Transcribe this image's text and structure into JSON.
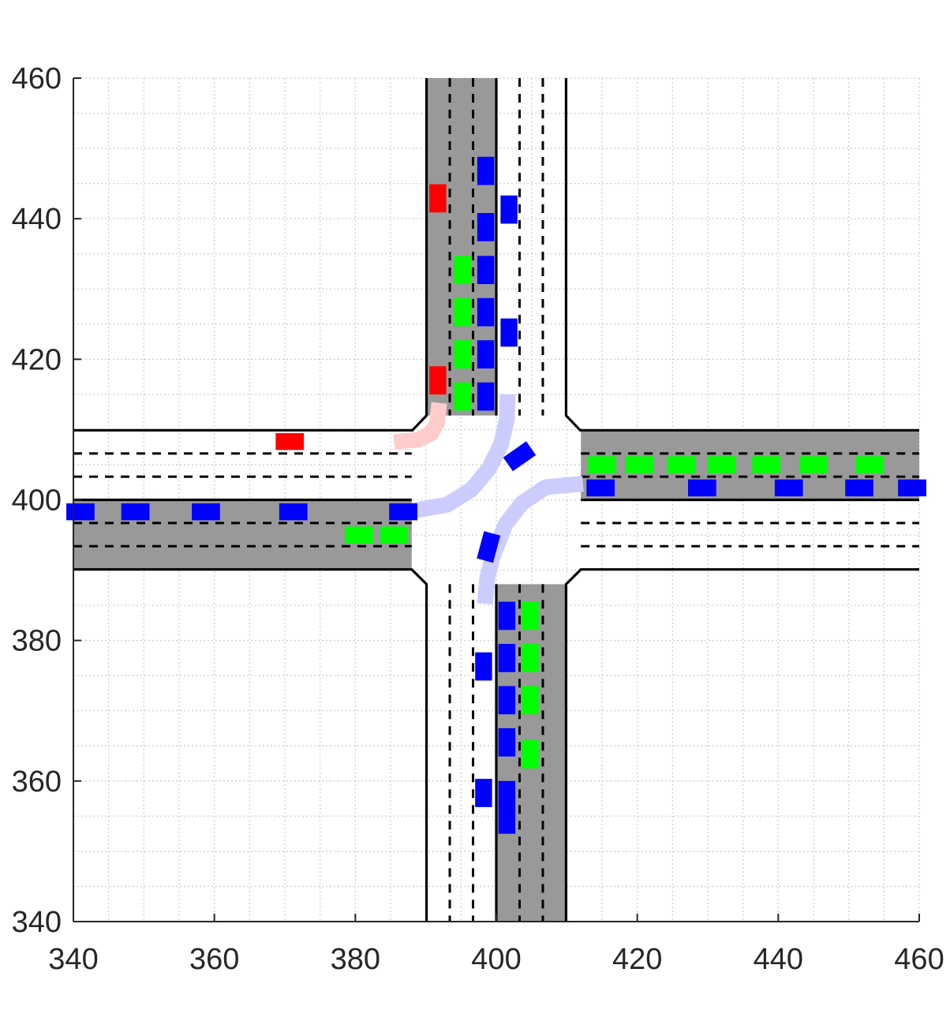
{
  "chart_data": {
    "type": "scatter",
    "title": "",
    "xlabel": "",
    "ylabel": "",
    "xlim": [
      340,
      460
    ],
    "ylim": [
      340,
      460
    ],
    "grid": "on",
    "minor_grid": "on",
    "x_tick_labels": [
      "340",
      "360",
      "380",
      "400",
      "420",
      "440",
      "460"
    ],
    "y_tick_labels": [
      "340",
      "360",
      "380",
      "400",
      "420",
      "440",
      "460"
    ],
    "colors": {
      "road_shade": "#999999",
      "blue_vehicle": "#0000ff",
      "green_vehicle": "#00ff00",
      "red_vehicle": "#ff0000",
      "blue_trajectory": "#ccccff",
      "red_trajectory": "#ffcccc",
      "road_edge": "#000000",
      "grid": "#d0d0d0"
    },
    "road": {
      "center": [
        400,
        400
      ],
      "lane_width": 3.3,
      "lanes_per_direction": 3,
      "intersection_half_size": 12,
      "corner_chamfer": 2
    },
    "trajectories": [
      {
        "color": "blue",
        "points": [
          [
            388.3,
            398.5
          ],
          [
            393,
            399.3
          ],
          [
            396.5,
            401.5
          ],
          [
            399,
            404.5
          ],
          [
            400.7,
            408
          ],
          [
            401.5,
            411.5
          ],
          [
            401.6,
            415
          ]
        ]
      },
      {
        "color": "blue",
        "points": [
          [
            412.3,
            402.3
          ],
          [
            407,
            401.8
          ],
          [
            403.6,
            399.5
          ],
          [
            401.3,
            396.5
          ],
          [
            399.5,
            392
          ],
          [
            398.7,
            388.8
          ],
          [
            398.4,
            385.2
          ]
        ]
      },
      {
        "color": "red",
        "points": [
          [
            385.5,
            408.2
          ],
          [
            389,
            408.6
          ],
          [
            390.8,
            409.5
          ],
          [
            391.6,
            411
          ],
          [
            391.9,
            413.8
          ]
        ]
      }
    ],
    "vehicles": {
      "blue": [
        [
          398.5,
          446.8,
          "v"
        ],
        [
          398.5,
          438.8,
          "v"
        ],
        [
          398.5,
          432.7,
          "v"
        ],
        [
          398.5,
          426.7,
          "v"
        ],
        [
          398.5,
          420.7,
          "v"
        ],
        [
          398.5,
          414.7,
          "v"
        ],
        [
          401.8,
          441.3,
          "v"
        ],
        [
          401.8,
          423.8,
          "v"
        ],
        [
          341.0,
          398.3,
          "h"
        ],
        [
          348.8,
          398.3,
          "h"
        ],
        [
          358.8,
          398.3,
          "h"
        ],
        [
          371.2,
          398.3,
          "h"
        ],
        [
          386.8,
          398.3,
          "h"
        ],
        [
          414.8,
          401.7,
          "h"
        ],
        [
          429.2,
          401.7,
          "h"
        ],
        [
          441.5,
          401.7,
          "h"
        ],
        [
          451.5,
          401.7,
          "h"
        ],
        [
          459.0,
          401.7,
          "h"
        ],
        [
          401.5,
          383.5,
          "v"
        ],
        [
          401.5,
          377.5,
          "v"
        ],
        [
          401.5,
          371.5,
          "v"
        ],
        [
          401.5,
          365.5,
          "v"
        ],
        [
          401.5,
          358.0,
          "v"
        ],
        [
          401.5,
          354.5,
          "v"
        ],
        [
          398.2,
          376.3,
          "v"
        ],
        [
          398.2,
          358.3,
          "v"
        ],
        [
          403.3,
          406.2,
          "r-35"
        ],
        [
          398.9,
          393.3,
          "r-75"
        ]
      ],
      "green": [
        [
          395.2,
          432.7,
          "v"
        ],
        [
          395.2,
          426.7,
          "v"
        ],
        [
          395.2,
          420.7,
          "v"
        ],
        [
          395.2,
          414.7,
          "v"
        ],
        [
          380.5,
          395.0,
          "h"
        ],
        [
          385.5,
          395.0,
          "h"
        ],
        [
          415.0,
          405.0,
          "h"
        ],
        [
          420.3,
          405.0,
          "h"
        ],
        [
          426.2,
          405.0,
          "h"
        ],
        [
          432.0,
          405.0,
          "h"
        ],
        [
          438.3,
          405.0,
          "h"
        ],
        [
          445.0,
          405.0,
          "h"
        ],
        [
          453.0,
          405.0,
          "h"
        ],
        [
          404.8,
          383.5,
          "v"
        ],
        [
          404.8,
          377.5,
          "v"
        ],
        [
          404.8,
          371.5,
          "v"
        ],
        [
          404.8,
          363.8,
          "v"
        ]
      ],
      "red": [
        [
          391.7,
          442.9,
          "v"
        ],
        [
          391.7,
          417.0,
          "v"
        ],
        [
          370.7,
          408.3,
          "h"
        ]
      ]
    }
  }
}
